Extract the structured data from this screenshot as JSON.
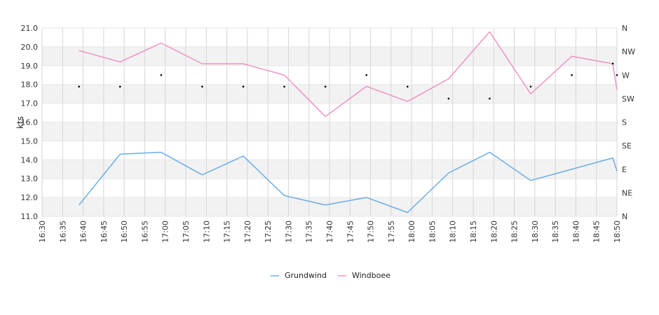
{
  "chart_data": {
    "type": "line",
    "title": "",
    "xlabel": "",
    "ylabel": "kts",
    "ylim": [
      11,
      21
    ],
    "yticks": [
      "11.0",
      "12.0",
      "13.0",
      "14.0",
      "15.0",
      "16.0",
      "17.0",
      "18.0",
      "19.0",
      "20.0",
      "21.0"
    ],
    "x_ticks": [
      "16:30",
      "16:35",
      "16:40",
      "16:45",
      "16:50",
      "16:55",
      "17:00",
      "17:05",
      "17:10",
      "17:15",
      "17:20",
      "17:25",
      "17:30",
      "17:35",
      "17:40",
      "17:45",
      "17:50",
      "17:55",
      "18:00",
      "18:05",
      "18:10",
      "18:15",
      "18:20",
      "18:25",
      "18:30",
      "18:35",
      "18:40",
      "18:45",
      "18:50"
    ],
    "direction_axis": {
      "labels": [
        "N",
        "NE",
        "E",
        "SE",
        "S",
        "SW",
        "W",
        "NW",
        "N"
      ],
      "range_degrees": [
        0,
        360
      ]
    },
    "x": [
      "16:39",
      "16:49",
      "16:59",
      "17:09",
      "17:19",
      "17:29",
      "17:39",
      "17:49",
      "17:59",
      "18:09",
      "18:19",
      "18:29",
      "18:39",
      "18:49",
      "18:50"
    ],
    "series": [
      {
        "name": "Grundwind",
        "color": "#6aaee8",
        "values": [
          11.6,
          14.3,
          14.4,
          13.2,
          14.2,
          12.1,
          11.6,
          12.0,
          11.2,
          13.3,
          14.4,
          12.9,
          13.5,
          14.1,
          13.4
        ]
      },
      {
        "name": "Windboee",
        "color": "#ee92c4",
        "values": [
          19.8,
          19.2,
          20.2,
          19.1,
          19.1,
          18.5,
          16.3,
          17.9,
          17.1,
          18.3,
          20.8,
          17.5,
          19.5,
          19.1,
          17.7
        ]
      }
    ],
    "direction": {
      "name": "direction",
      "x": [
        "16:39",
        "16:49",
        "16:59",
        "17:09",
        "17:19",
        "17:29",
        "17:39",
        "17:49",
        "17:59",
        "18:09",
        "18:19",
        "18:29",
        "18:39",
        "18:49",
        "18:50"
      ],
      "degrees": [
        248,
        248,
        270,
        248,
        248,
        248,
        248,
        270,
        248,
        225,
        225,
        248,
        270,
        292,
        270
      ]
    },
    "grid": true,
    "legend_position": "bottom-center"
  }
}
